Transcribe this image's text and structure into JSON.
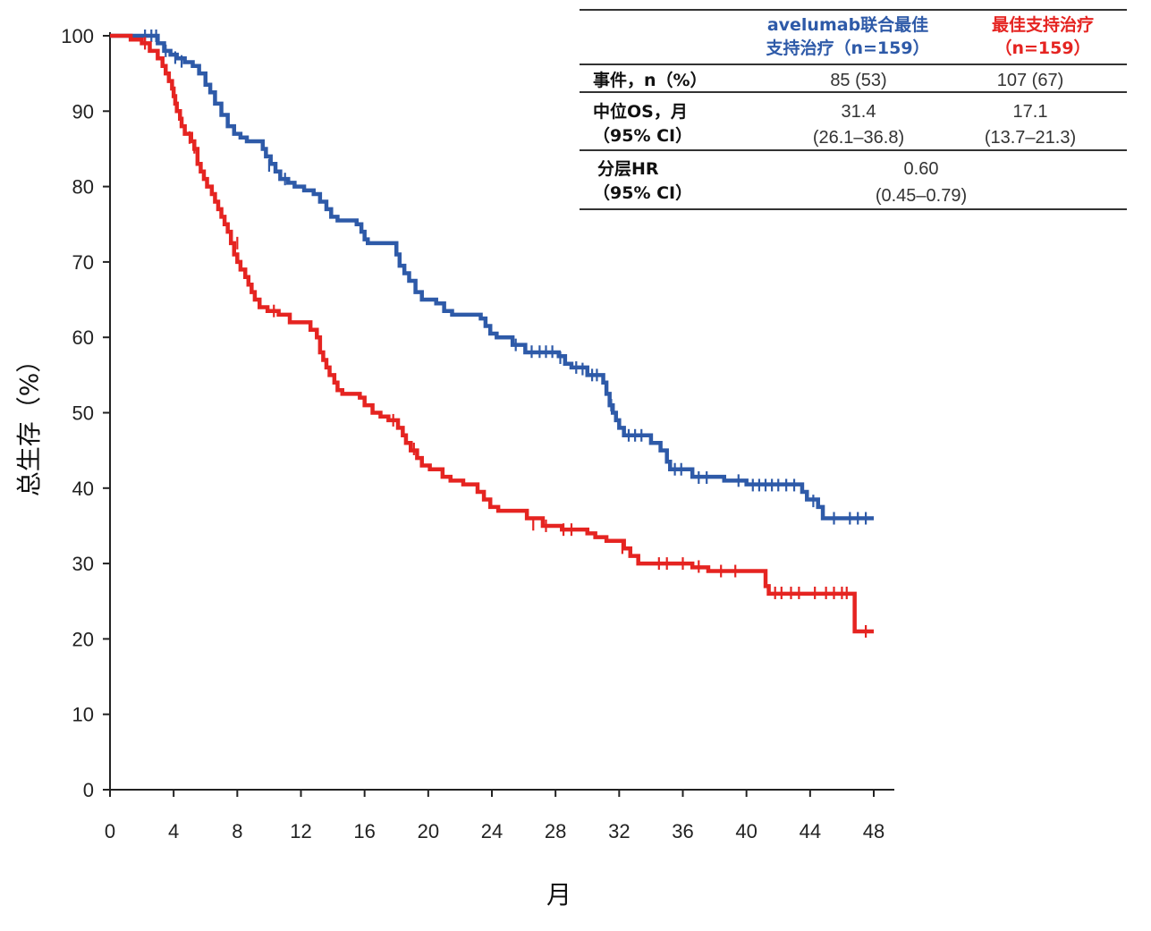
{
  "chart_data": {
    "type": "line",
    "subtype": "kaplan-meier",
    "xlabel": "月",
    "ylabel": "总生存（%）",
    "xlim": [
      0,
      48
    ],
    "ylim": [
      0,
      100
    ],
    "xticks": [
      0,
      4,
      8,
      12,
      16,
      20,
      24,
      28,
      32,
      36,
      40,
      44,
      48
    ],
    "yticks": [
      0,
      10,
      20,
      30,
      40,
      50,
      60,
      70,
      80,
      90,
      100
    ],
    "grid": false,
    "series": [
      {
        "name": "avelumab联合最佳支持治疗（n=159）",
        "color": "#2e5aa8",
        "steps": [
          [
            0,
            100
          ],
          [
            3,
            99
          ],
          [
            3.4,
            98
          ],
          [
            3.8,
            97.5
          ],
          [
            4.2,
            97
          ],
          [
            4.7,
            96.5
          ],
          [
            5.2,
            96
          ],
          [
            5.6,
            95
          ],
          [
            6,
            93.5
          ],
          [
            6.3,
            92.5
          ],
          [
            6.6,
            91
          ],
          [
            7,
            89.5
          ],
          [
            7.4,
            88
          ],
          [
            7.8,
            87
          ],
          [
            8.2,
            86.5
          ],
          [
            8.6,
            86
          ],
          [
            9.6,
            85
          ],
          [
            9.8,
            84
          ],
          [
            10.1,
            83
          ],
          [
            10.4,
            82
          ],
          [
            10.7,
            81
          ],
          [
            11.2,
            80.5
          ],
          [
            11.6,
            80
          ],
          [
            12.2,
            79.5
          ],
          [
            12.8,
            79
          ],
          [
            13.2,
            78
          ],
          [
            13.6,
            77
          ],
          [
            13.9,
            76
          ],
          [
            14.3,
            75.5
          ],
          [
            15.5,
            75
          ],
          [
            15.8,
            74
          ],
          [
            16,
            73
          ],
          [
            16.2,
            72.5
          ],
          [
            17.8,
            72.5
          ],
          [
            18,
            71
          ],
          [
            18.2,
            69.5
          ],
          [
            18.5,
            68.5
          ],
          [
            18.8,
            67.5
          ],
          [
            19.2,
            66
          ],
          [
            19.6,
            65
          ],
          [
            20.5,
            64.5
          ],
          [
            21,
            63.5
          ],
          [
            21.5,
            63
          ],
          [
            23.3,
            62.5
          ],
          [
            23.6,
            61.5
          ],
          [
            23.9,
            60.5
          ],
          [
            24.3,
            60
          ],
          [
            25.3,
            59
          ],
          [
            26.1,
            58
          ],
          [
            28.2,
            57.5
          ],
          [
            28.6,
            56.5
          ],
          [
            29,
            56
          ],
          [
            30,
            55
          ],
          [
            31,
            54
          ],
          [
            31.2,
            52.5
          ],
          [
            31.4,
            51
          ],
          [
            31.6,
            50
          ],
          [
            31.8,
            49
          ],
          [
            32,
            48
          ],
          [
            32.3,
            47
          ],
          [
            34,
            46
          ],
          [
            34.6,
            45
          ],
          [
            35,
            43.5
          ],
          [
            35.2,
            42.5
          ],
          [
            36.6,
            41.5
          ],
          [
            38.6,
            41
          ],
          [
            40,
            40.5
          ],
          [
            43.5,
            39.5
          ],
          [
            43.8,
            38.5
          ],
          [
            44.5,
            37.5
          ],
          [
            44.8,
            36
          ],
          [
            48,
            36
          ]
        ],
        "censored": [
          [
            2.2,
            100
          ],
          [
            2.6,
            100
          ],
          [
            2.9,
            100
          ],
          [
            3.5,
            98
          ],
          [
            4.1,
            97.1
          ],
          [
            4.5,
            96.6
          ],
          [
            10,
            82.8
          ],
          [
            11,
            81
          ],
          [
            25.5,
            59
          ],
          [
            26.5,
            58.1
          ],
          [
            27,
            58.1
          ],
          [
            27.4,
            58.1
          ],
          [
            27.8,
            58.1
          ],
          [
            28.3,
            57.3
          ],
          [
            29.3,
            56
          ],
          [
            29.7,
            55.8
          ],
          [
            30.3,
            55
          ],
          [
            30.6,
            55
          ],
          [
            31.5,
            51
          ],
          [
            32.6,
            47
          ],
          [
            33,
            47
          ],
          [
            33.4,
            47
          ],
          [
            35.5,
            42.5
          ],
          [
            35.9,
            42.5
          ],
          [
            37,
            41.4
          ],
          [
            37.5,
            41.4
          ],
          [
            39.5,
            41
          ],
          [
            40.4,
            40.4
          ],
          [
            40.8,
            40.4
          ],
          [
            41.2,
            40.4
          ],
          [
            41.6,
            40.4
          ],
          [
            42,
            40.4
          ],
          [
            42.5,
            40.4
          ],
          [
            43,
            40.4
          ],
          [
            44.2,
            38.3
          ],
          [
            45.5,
            36
          ],
          [
            46.5,
            36
          ],
          [
            47,
            36
          ],
          [
            47.5,
            36
          ]
        ]
      },
      {
        "name": "最佳支持治疗（n=159）",
        "color": "#e52421",
        "steps": [
          [
            0,
            100
          ],
          [
            1.3,
            99.5
          ],
          [
            2,
            99
          ],
          [
            2.5,
            98
          ],
          [
            3,
            97
          ],
          [
            3.3,
            96
          ],
          [
            3.5,
            95
          ],
          [
            3.7,
            94
          ],
          [
            3.9,
            93
          ],
          [
            4,
            92
          ],
          [
            4.1,
            91
          ],
          [
            4.2,
            90
          ],
          [
            4.4,
            89
          ],
          [
            4.5,
            88
          ],
          [
            4.7,
            87
          ],
          [
            5.1,
            86
          ],
          [
            5.3,
            85
          ],
          [
            5.5,
            83
          ],
          [
            5.7,
            82
          ],
          [
            5.9,
            81
          ],
          [
            6.1,
            80
          ],
          [
            6.4,
            79
          ],
          [
            6.6,
            78
          ],
          [
            6.8,
            77
          ],
          [
            7,
            76
          ],
          [
            7.2,
            75
          ],
          [
            7.4,
            74
          ],
          [
            7.6,
            72.5
          ],
          [
            7.8,
            71
          ],
          [
            8,
            70
          ],
          [
            8.2,
            69
          ],
          [
            8.5,
            68
          ],
          [
            8.7,
            67
          ],
          [
            8.9,
            66
          ],
          [
            9.1,
            65
          ],
          [
            9.4,
            64
          ],
          [
            9.9,
            63.5
          ],
          [
            10.6,
            63
          ],
          [
            11.3,
            62
          ],
          [
            12.6,
            61
          ],
          [
            13,
            60
          ],
          [
            13.2,
            58
          ],
          [
            13.4,
            57
          ],
          [
            13.6,
            56
          ],
          [
            13.8,
            55
          ],
          [
            14.1,
            54
          ],
          [
            14.3,
            53
          ],
          [
            14.6,
            52.5
          ],
          [
            15.7,
            52
          ],
          [
            16,
            51
          ],
          [
            16.5,
            50
          ],
          [
            17,
            49.5
          ],
          [
            17.5,
            49
          ],
          [
            18.1,
            48
          ],
          [
            18.4,
            47
          ],
          [
            18.6,
            46
          ],
          [
            18.9,
            45
          ],
          [
            19.3,
            44
          ],
          [
            19.6,
            43
          ],
          [
            20.1,
            42.5
          ],
          [
            20.9,
            41.5
          ],
          [
            21.4,
            41
          ],
          [
            22.2,
            40.5
          ],
          [
            23.1,
            39.5
          ],
          [
            23.5,
            38.5
          ],
          [
            23.9,
            37.5
          ],
          [
            24.4,
            37
          ],
          [
            26.2,
            36
          ],
          [
            27.2,
            35
          ],
          [
            28.4,
            34.5
          ],
          [
            30,
            34
          ],
          [
            30.5,
            33.5
          ],
          [
            31.2,
            33
          ],
          [
            32.3,
            32
          ],
          [
            32.7,
            31
          ],
          [
            33.2,
            30
          ],
          [
            36.6,
            29.5
          ],
          [
            37.6,
            29
          ],
          [
            41.2,
            27
          ],
          [
            41.4,
            26
          ],
          [
            46.6,
            26
          ],
          [
            46.8,
            21
          ],
          [
            48,
            21
          ]
        ],
        "censored": [
          [
            2.2,
            99
          ],
          [
            5,
            86.5
          ],
          [
            5.3,
            85.2
          ],
          [
            8,
            72.5
          ],
          [
            10.3,
            63.5
          ],
          [
            17.8,
            49
          ],
          [
            19.1,
            45.2
          ],
          [
            26.6,
            35.2
          ],
          [
            27.4,
            35
          ],
          [
            28.5,
            34.5
          ],
          [
            29,
            34.5
          ],
          [
            32.2,
            32.1
          ],
          [
            34.5,
            30
          ],
          [
            35,
            30
          ],
          [
            36,
            30
          ],
          [
            37,
            29.6
          ],
          [
            38.4,
            29
          ],
          [
            39.3,
            29
          ],
          [
            41.8,
            26.1
          ],
          [
            42.2,
            26.1
          ],
          [
            42.8,
            26.1
          ],
          [
            43.3,
            26.1
          ],
          [
            44.3,
            26.1
          ],
          [
            45,
            26.1
          ],
          [
            45.5,
            26.1
          ],
          [
            46,
            26.1
          ],
          [
            46.3,
            26.1
          ],
          [
            47.5,
            21
          ]
        ]
      }
    ],
    "table": {
      "headers": [
        "",
        "avelumab联合最佳支持治疗（n=159）",
        "最佳支持治疗（n=159）"
      ],
      "header_lines": {
        "blue": [
          "avelumab联合最佳",
          "支持治疗（n=159）"
        ],
        "red": [
          "最佳支持治疗",
          "（n=159）"
        ]
      },
      "rows": [
        {
          "label": [
            "事件，n（%）"
          ],
          "values": [
            [
              "85 (53)"
            ],
            [
              "107 (67)"
            ]
          ]
        },
        {
          "label": [
            "中位OS，月",
            "（95% CI）"
          ],
          "values": [
            [
              "31.4",
              "(26.1–36.8)"
            ],
            [
              "17.1",
              "(13.7–21.3)"
            ]
          ]
        },
        {
          "label": [
            "分层HR",
            "（95% CI）"
          ],
          "merged_value": [
            "0.60",
            "(0.45–0.79)"
          ]
        }
      ]
    }
  }
}
